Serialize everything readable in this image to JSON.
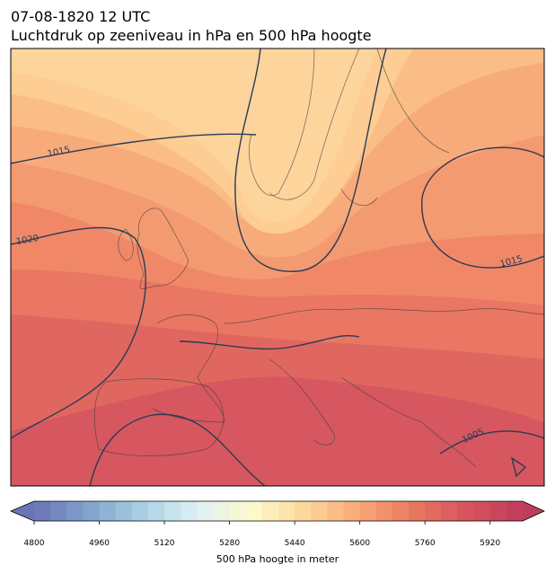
{
  "header": {
    "title": "07-08-1820 12 UTC",
    "subtitle": "Luchtdruk op zeeniveau in hPa en 500 hPa hoogte"
  },
  "map": {
    "contour_labels": [
      "1015",
      "1020",
      "1015",
      "1005"
    ]
  },
  "colorbar": {
    "label": "500 hPa hoogte in meter",
    "range": [
      4800,
      6000
    ],
    "step": 40,
    "ticks": [
      4800,
      4960,
      5120,
      5280,
      5440,
      5600,
      5760,
      5920
    ]
  }
}
